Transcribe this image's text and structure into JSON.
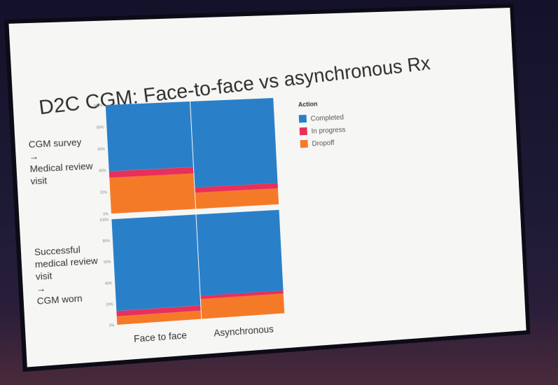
{
  "slide": {
    "title": "D2C CGM: Face-to-face vs asynchronous Rx"
  },
  "chart_data": {
    "type": "bar",
    "stacked": true,
    "normalized": true,
    "categories": [
      "Face to face",
      "Asynchronous"
    ],
    "legend": {
      "title": "Action",
      "position": "right",
      "items": [
        {
          "name": "Completed",
          "color": "#2a7fc9"
        },
        {
          "name": "In progress",
          "color": "#e8305a"
        },
        {
          "name": "Dropoff",
          "color": "#f57a28"
        }
      ]
    },
    "y_ticks": [
      "0%",
      "20%",
      "40%",
      "60%",
      "80%",
      "100%"
    ],
    "ylim": [
      0,
      100
    ],
    "panels": [
      {
        "row_label": [
          "CGM survey",
          "→",
          "Medical review",
          "visit"
        ],
        "series": [
          {
            "name": "Dropoff",
            "values": [
              33,
              15
            ]
          },
          {
            "name": "In progress",
            "values": [
              6,
              5
            ]
          },
          {
            "name": "Completed",
            "values": [
              61,
              80
            ]
          }
        ]
      },
      {
        "row_label": [
          "Successful",
          "medical review",
          "visit",
          "→",
          "CGM worn"
        ],
        "series": [
          {
            "name": "Dropoff",
            "values": [
              8,
              19
            ]
          },
          {
            "name": "In progress",
            "values": [
              5,
              3
            ]
          },
          {
            "name": "Completed",
            "values": [
              87,
              78
            ]
          }
        ]
      }
    ]
  }
}
